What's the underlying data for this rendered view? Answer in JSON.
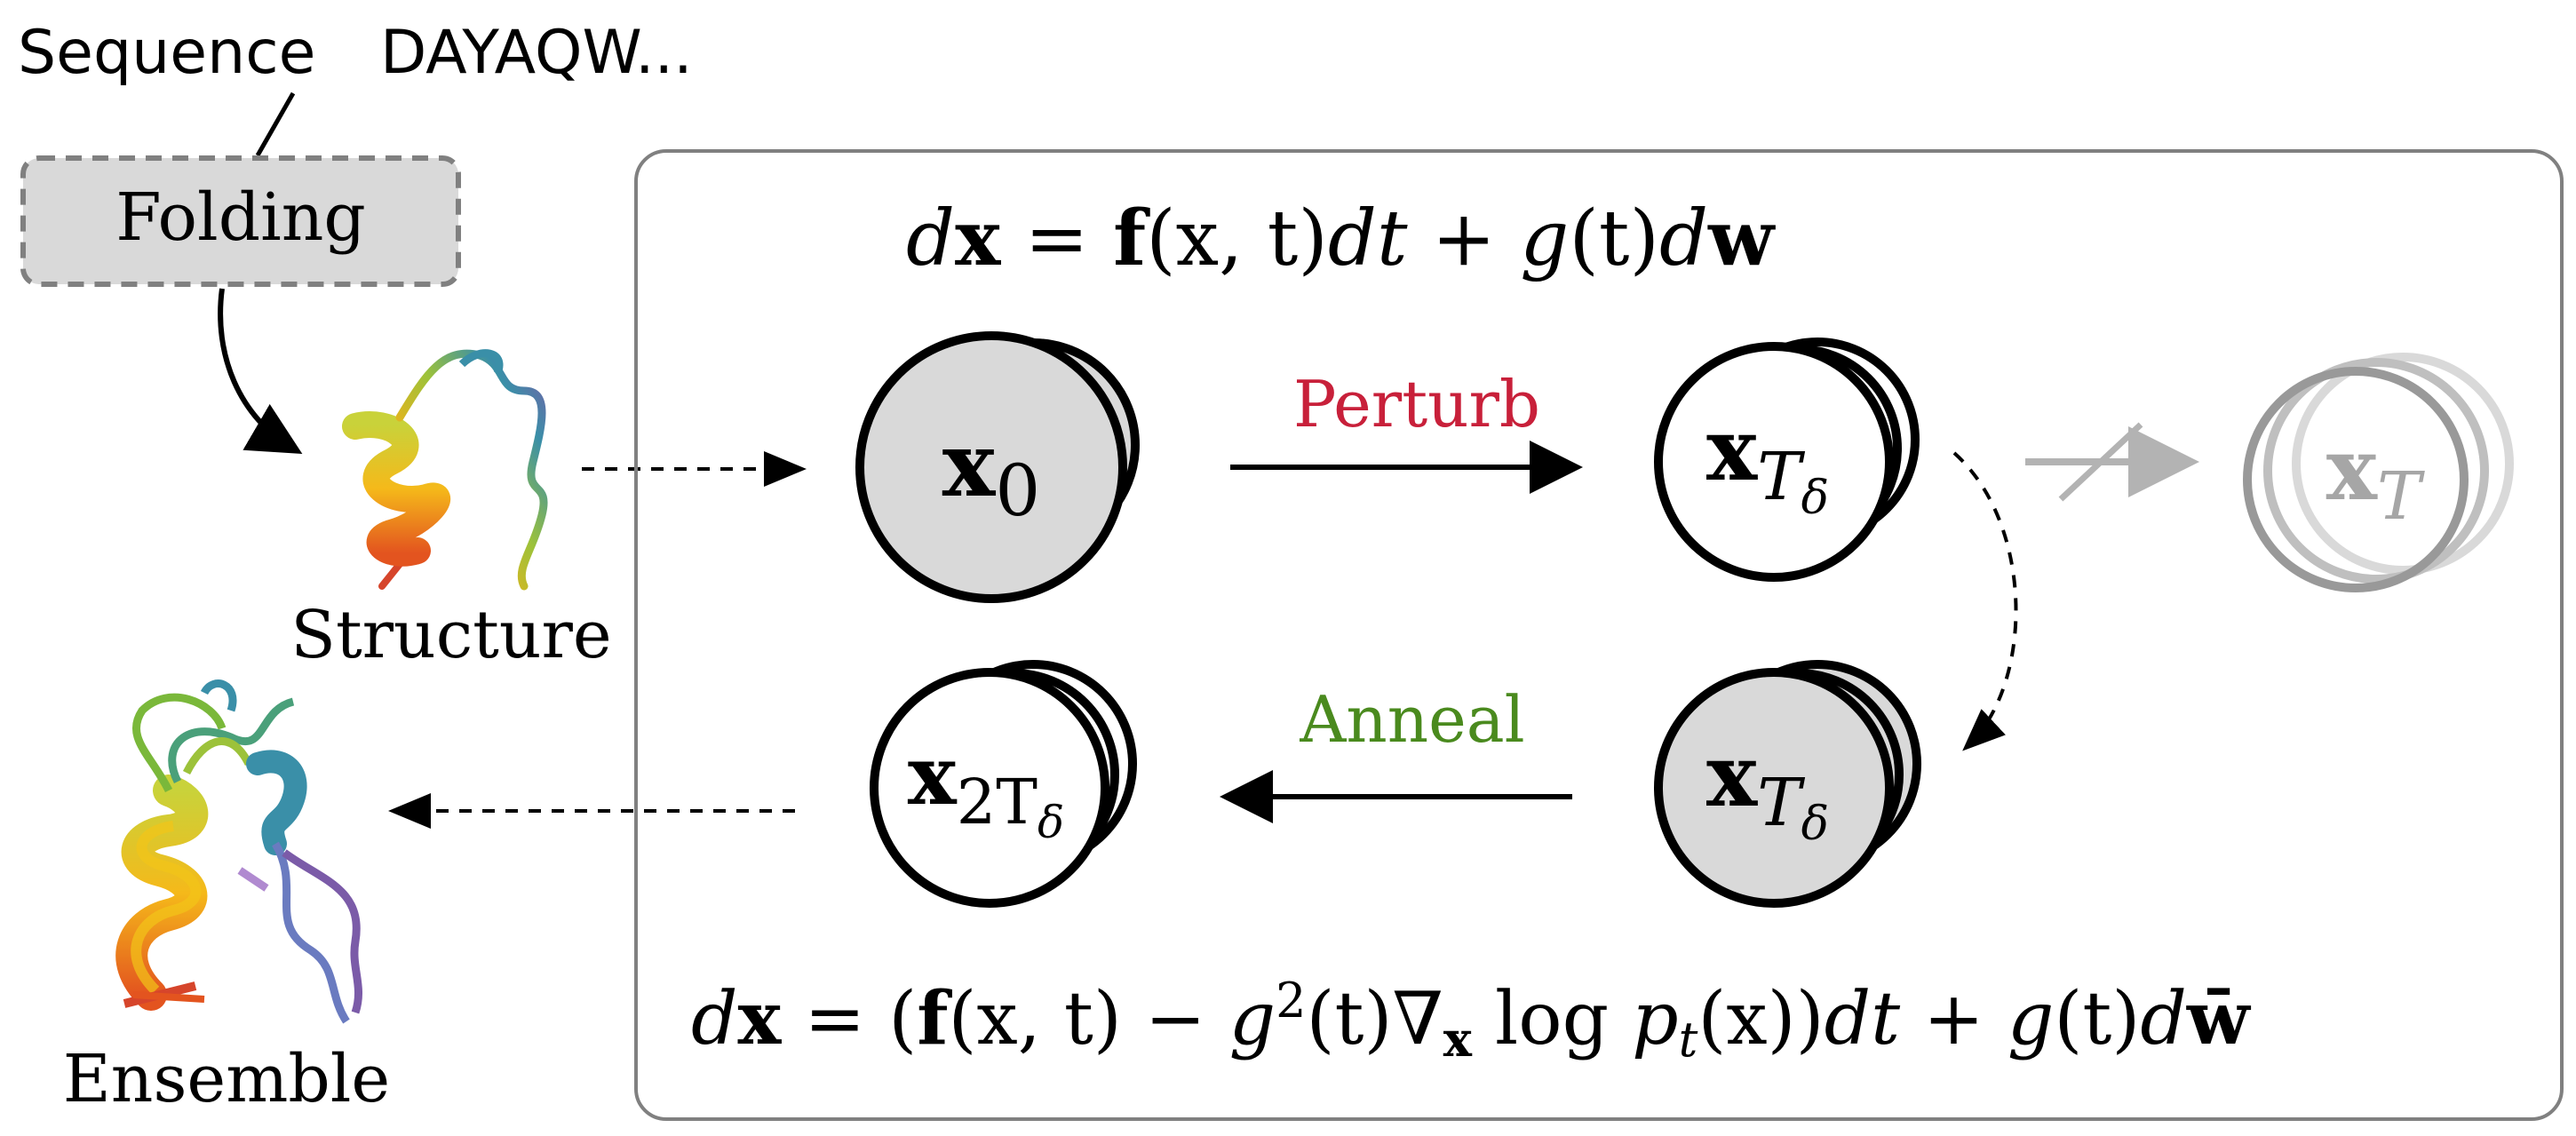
{
  "labels": {
    "sequence_prefix": "Sequence",
    "sequence_value": "DAYAQW...",
    "folding": "Folding",
    "structure": "Structure",
    "ensemble": "Ensemble",
    "perturb": "Perturb",
    "anneal": "Anneal"
  },
  "equations": {
    "forward": {
      "d": "d",
      "x": "x",
      "eq": " = ",
      "f": "f",
      "args": "(x, t)",
      "dt": "dt",
      "plus": " + ",
      "g": "g",
      "gt": "(t)",
      "dw": "w"
    },
    "reverse": {
      "lhs_d": "d",
      "lhs_x": "x",
      "eq": " = (",
      "f": "f",
      "f_args": "(x, t) − ",
      "g": "g",
      "sq": "2",
      "gt": "(t)∇",
      "sub_x": "x",
      "log": " log ",
      "p": "p",
      "sub_t": "t",
      "px": "(x))",
      "dt": "dt",
      "plus": " + ",
      "g2": "g",
      "gt2": "(t)",
      "d": "d",
      "wbar": "w̄"
    }
  },
  "nodes": {
    "x0": {
      "base": "x",
      "sub": "0"
    },
    "xTd_top": {
      "base": "x",
      "sub": "T",
      "subsub": "δ"
    },
    "xT": {
      "base": "x",
      "sub": "T"
    },
    "xTd_bottom": {
      "base": "x",
      "sub": "T",
      "subsub": "δ"
    },
    "x2Td": {
      "base": "x",
      "sub": "2T",
      "subsub": "δ"
    }
  },
  "colors": {
    "perturb": "#c8203a",
    "anneal": "#4a8a1e",
    "node_fill_gray": "#d9d9d9",
    "faded": "#a6a6a6",
    "folding_box": "#d9d9d9",
    "frame": "#808080"
  }
}
